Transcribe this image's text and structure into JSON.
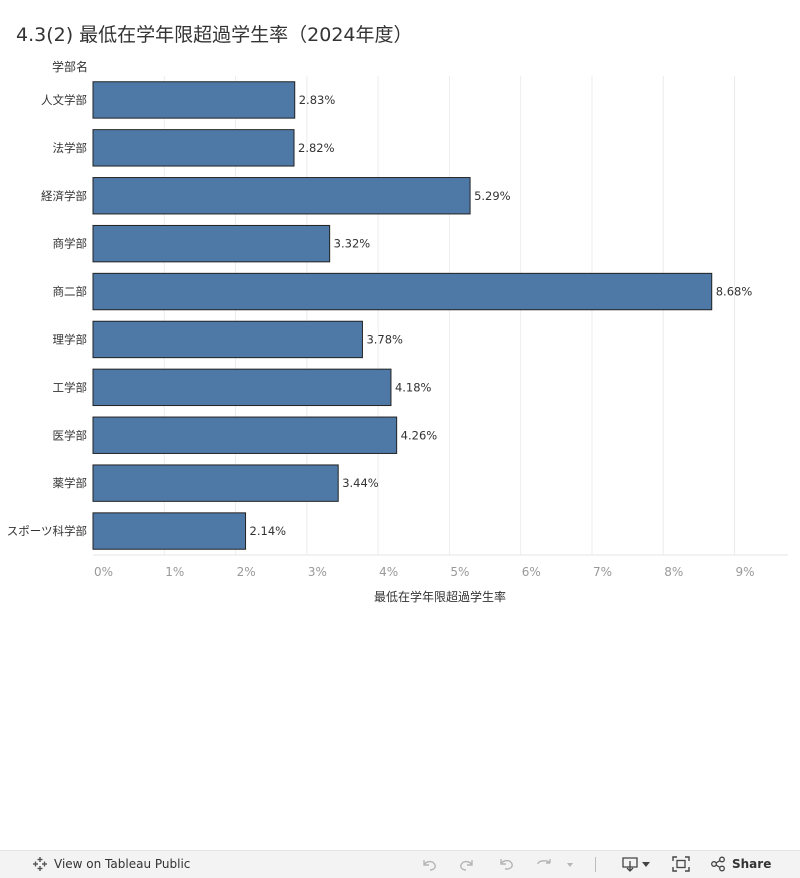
{
  "title": "4.3(2) 最低在学年限超過学生率（2024年度）",
  "chart_data": {
    "type": "bar",
    "orientation": "horizontal",
    "title": "4.3(2) 最低在学年限超過学生率（2024年度）",
    "ylabel": "学部名",
    "xlabel": "最低在学年限超過学生率",
    "categories": [
      "人文学部",
      "法学部",
      "経済学部",
      "商学部",
      "商二部",
      "理学部",
      "工学部",
      "医学部",
      "薬学部",
      "スポーツ科学部"
    ],
    "values": [
      2.83,
      2.82,
      5.29,
      3.32,
      8.68,
      3.78,
      4.18,
      4.26,
      3.44,
      2.14
    ],
    "value_labels": [
      "2.83%",
      "2.82%",
      "5.29%",
      "3.32%",
      "8.68%",
      "3.78%",
      "4.18%",
      "4.26%",
      "3.44%",
      "2.14%"
    ],
    "x_ticks": [
      "0%",
      "1%",
      "2%",
      "3%",
      "4%",
      "5%",
      "6%",
      "7%",
      "8%",
      "9%"
    ],
    "xlim": [
      0,
      9.75
    ],
    "grid": "vertical",
    "bar_color": "#4e79a7"
  },
  "toolbar": {
    "view_label": "View on Tableau Public",
    "share_label": "Share"
  }
}
